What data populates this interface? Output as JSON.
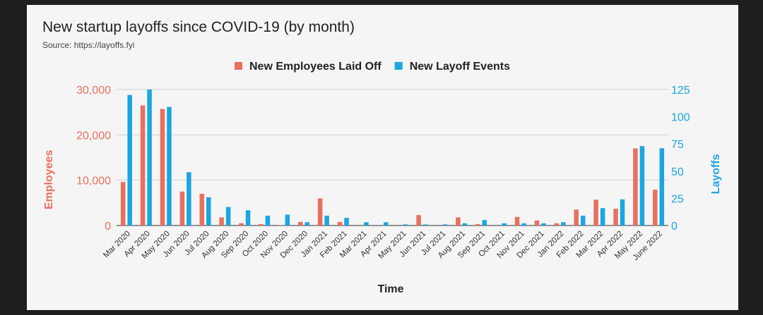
{
  "chart_data": {
    "type": "bar",
    "title": "New startup layoffs since COVID-19 (by month)",
    "subtitle": "Source: https://layoffs.fyi",
    "xlabel": "Time",
    "ylabel_left": "Employees",
    "ylabel_right": "Layoffs",
    "ylim_left": [
      0,
      30000
    ],
    "ylim_right": [
      0,
      125
    ],
    "yticks_left": [
      "0",
      "10,000",
      "20,000",
      "30,000"
    ],
    "yticks_right": [
      "0",
      "25",
      "50",
      "75",
      "100",
      "125"
    ],
    "legend_position": "top",
    "categories": [
      "Mar 2020",
      "Apr 2020",
      "May 2020",
      "Jun 2020",
      "Jul 2020",
      "Aug 2020",
      "Sep 2020",
      "Oct 2020",
      "Nov 2020",
      "Dec 2020",
      "Jan 2021",
      "Feb 2021",
      "Mar 2021",
      "Apr 2021",
      "May 2021",
      "Jun 2021",
      "Jul 2021",
      "Aug 2021",
      "Sep 2021",
      "Oct 2021",
      "Nov 2021",
      "Dec 2021",
      "Jan 2022",
      "Feb 2022",
      "Mar 2022",
      "Apr 2022",
      "May 2022",
      "June 2022"
    ],
    "series": [
      {
        "name": "New Employees Laid Off",
        "axis": "left",
        "color": "#e8705f",
        "values": [
          9600,
          26500,
          25700,
          7500,
          7000,
          1800,
          500,
          300,
          100,
          800,
          6000,
          800,
          0,
          0,
          0,
          2300,
          0,
          1800,
          300,
          0,
          1900,
          1100,
          500,
          3500,
          5700,
          3700,
          17000,
          7900
        ]
      },
      {
        "name": "New Layoff Events",
        "axis": "right",
        "color": "#1aa6df",
        "values": [
          120,
          125,
          109,
          49,
          26,
          17,
          14,
          9,
          10,
          3,
          9,
          7,
          3,
          3,
          1,
          1,
          1,
          2,
          5,
          2,
          2,
          2,
          3,
          9,
          16,
          24,
          73,
          71
        ]
      }
    ]
  }
}
